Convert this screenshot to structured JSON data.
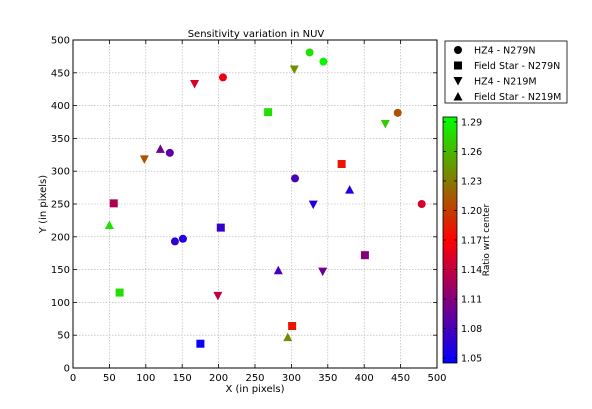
{
  "chart_data": {
    "type": "scatter",
    "title": "Sensitivity variation in NUV",
    "xlabel": "X (in pixels)",
    "ylabel": "Y (in pixels)",
    "xlim": [
      0,
      500
    ],
    "ylim": [
      0,
      500
    ],
    "xticks": [
      "0",
      "50",
      "100",
      "150",
      "200",
      "250",
      "300",
      "350",
      "400",
      "450",
      "500"
    ],
    "yticks": [
      "0",
      "50",
      "100",
      "150",
      "200",
      "250",
      "300",
      "350",
      "400",
      "450",
      "500"
    ],
    "grid": true,
    "legend_position": "outside-top-right",
    "colorbar": {
      "label": "Ratio wrt center",
      "range": [
        1.045,
        1.295
      ],
      "tick_values": [
        1.05,
        1.08,
        1.11,
        1.14,
        1.17,
        1.2,
        1.23,
        1.26,
        1.29
      ],
      "tick_labels": [
        "1.05",
        "1.08",
        "1.11",
        "1.14",
        "1.17",
        "1.20",
        "1.23",
        "1.26",
        "1.29"
      ],
      "colormap": "brg"
    },
    "series": [
      {
        "name": "HZ4 - N279N",
        "marker": "circle",
        "points": [
          {
            "x": 140,
            "y": 193,
            "v": 1.07
          },
          {
            "x": 151,
            "y": 197,
            "v": 1.06
          },
          {
            "x": 133,
            "y": 328,
            "v": 1.09
          },
          {
            "x": 206,
            "y": 443,
            "v": 1.16
          },
          {
            "x": 305,
            "y": 289,
            "v": 1.08
          },
          {
            "x": 325,
            "y": 481,
            "v": 1.28
          },
          {
            "x": 344,
            "y": 467,
            "v": 1.29
          },
          {
            "x": 446,
            "y": 389,
            "v": 1.21
          },
          {
            "x": 479,
            "y": 250,
            "v": 1.15
          }
        ]
      },
      {
        "name": "Field Star - N279N",
        "marker": "square",
        "points": [
          {
            "x": 56,
            "y": 251,
            "v": 1.13
          },
          {
            "x": 64,
            "y": 115,
            "v": 1.28
          },
          {
            "x": 175,
            "y": 37,
            "v": 1.05
          },
          {
            "x": 203,
            "y": 214,
            "v": 1.07
          },
          {
            "x": 268,
            "y": 390,
            "v": 1.28
          },
          {
            "x": 301,
            "y": 64,
            "v": 1.18
          },
          {
            "x": 369,
            "y": 311,
            "v": 1.18
          },
          {
            "x": 401,
            "y": 172,
            "v": 1.11
          }
        ]
      },
      {
        "name": "HZ4 - N219M",
        "marker": "triangle-down",
        "points": [
          {
            "x": 98,
            "y": 318,
            "v": 1.21
          },
          {
            "x": 167,
            "y": 433,
            "v": 1.15
          },
          {
            "x": 199,
            "y": 110,
            "v": 1.14
          },
          {
            "x": 304,
            "y": 455,
            "v": 1.24
          },
          {
            "x": 330,
            "y": 249,
            "v": 1.06
          },
          {
            "x": 343,
            "y": 147,
            "v": 1.1
          },
          {
            "x": 429,
            "y": 372,
            "v": 1.27
          }
        ]
      },
      {
        "name": "Field Star - N219M",
        "marker": "triangle-up",
        "points": [
          {
            "x": 50,
            "y": 218,
            "v": 1.28
          },
          {
            "x": 120,
            "y": 334,
            "v": 1.1
          },
          {
            "x": 282,
            "y": 149,
            "v": 1.08
          },
          {
            "x": 295,
            "y": 47,
            "v": 1.24
          },
          {
            "x": 380,
            "y": 272,
            "v": 1.06
          }
        ]
      }
    ]
  }
}
